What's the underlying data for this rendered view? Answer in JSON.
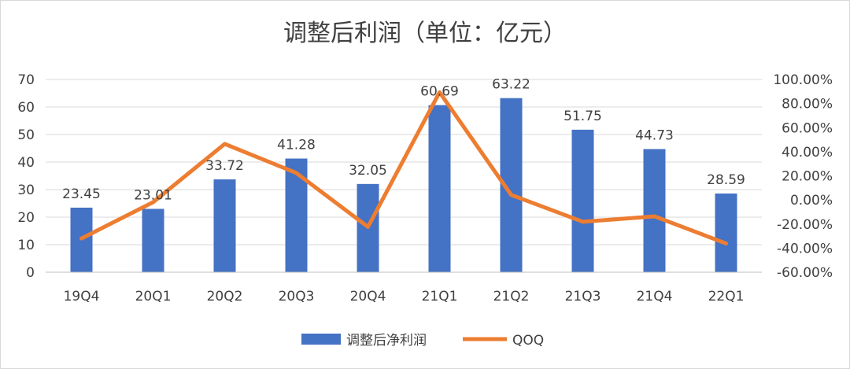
{
  "chart_data": {
    "type": "bar",
    "title": "调整后利润（单位：亿元）",
    "categories": [
      "19Q4",
      "20Q1",
      "20Q2",
      "20Q3",
      "20Q4",
      "21Q1",
      "21Q2",
      "21Q3",
      "21Q4",
      "22Q1"
    ],
    "series": [
      {
        "name": "调整后净利润",
        "type": "bar",
        "axis": "left",
        "color": "#4472C4",
        "values": [
          23.45,
          23.01,
          33.72,
          41.28,
          32.05,
          60.69,
          63.22,
          51.75,
          44.73,
          28.59
        ],
        "data_labels": [
          "23.45",
          "23.01",
          "33.72",
          "41.28",
          "32.05",
          "60.69",
          "63.22",
          "51.75",
          "44.73",
          "28.59"
        ]
      },
      {
        "name": "QOQ",
        "type": "line",
        "axis": "right",
        "color": "#ED7D31",
        "values": [
          -32,
          -1.9,
          46.5,
          22.4,
          -22.4,
          89.4,
          4.2,
          -18.1,
          -13.6,
          -36.1
        ]
      }
    ],
    "y_left": {
      "ylim": [
        0,
        70
      ],
      "ticks": [
        "0",
        "10",
        "20",
        "30",
        "40",
        "50",
        "60",
        "70"
      ]
    },
    "y_right": {
      "ylim": [
        -60,
        100
      ],
      "ticks": [
        "-60.00%",
        "-40.00%",
        "-20.00%",
        "0.00%",
        "20.00%",
        "40.00%",
        "60.00%",
        "80.00%",
        "100.00%"
      ]
    },
    "grid": true,
    "legend": "bottom"
  }
}
